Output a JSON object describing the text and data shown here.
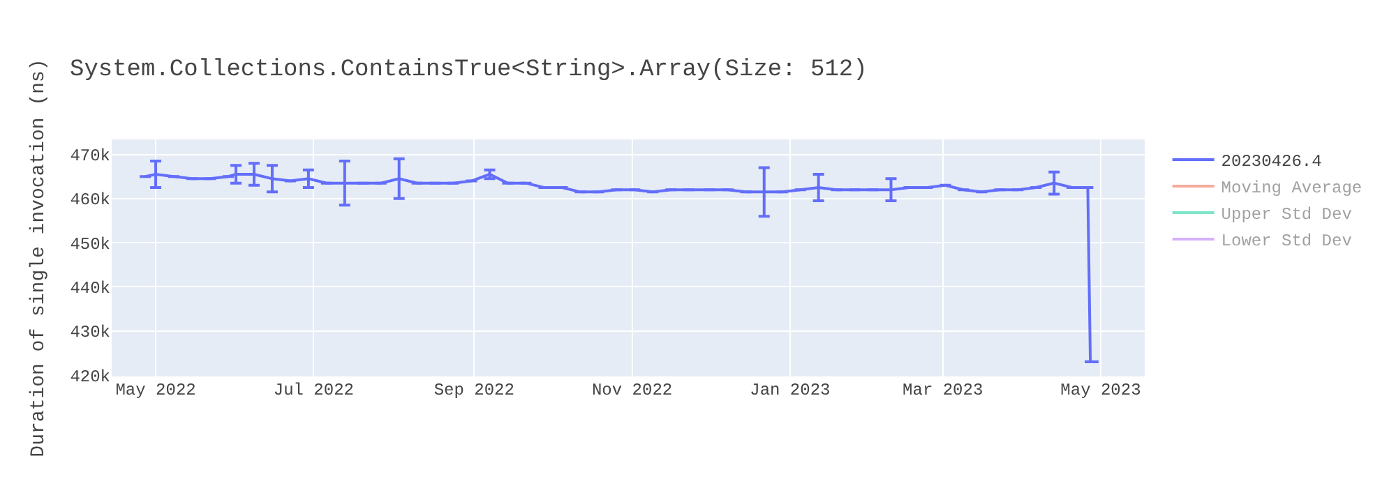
{
  "chart_data": {
    "type": "line",
    "title": "System.Collections.ContainsTrue<String>.Array(Size: 512)",
    "ylabel": "Duration of single invocation (ns)",
    "x": [
      "2022-04-27",
      "2022-05-01",
      "2022-05-08",
      "2022-05-15",
      "2022-05-22",
      "2022-05-29",
      "2022-06-01",
      "2022-06-08",
      "2022-06-15",
      "2022-06-22",
      "2022-06-29",
      "2022-07-06",
      "2022-07-13",
      "2022-07-20",
      "2022-07-27",
      "2022-08-03",
      "2022-08-10",
      "2022-08-17",
      "2022-08-24",
      "2022-08-31",
      "2022-09-07",
      "2022-09-14",
      "2022-09-21",
      "2022-09-28",
      "2022-10-05",
      "2022-10-12",
      "2022-10-19",
      "2022-10-26",
      "2022-11-02",
      "2022-11-09",
      "2022-11-16",
      "2022-11-23",
      "2022-12-01",
      "2022-12-08",
      "2022-12-15",
      "2022-12-22",
      "2022-12-29",
      "2023-01-05",
      "2023-01-12",
      "2023-01-19",
      "2023-01-26",
      "2023-02-02",
      "2023-02-09",
      "2023-02-16",
      "2023-02-23",
      "2023-03-02",
      "2023-03-09",
      "2023-03-16",
      "2023-03-23",
      "2023-03-30",
      "2023-04-06",
      "2023-04-13",
      "2023-04-20",
      "2023-04-26",
      "2023-04-27",
      "2023-04-28"
    ],
    "series": [
      {
        "name": "20230426.4",
        "color": "#636efa",
        "values": [
          465000,
          465500,
          465000,
          464500,
          464500,
          465000,
          465500,
          465500,
          464500,
          464000,
          464500,
          463500,
          463500,
          463500,
          463500,
          464500,
          463500,
          463500,
          463500,
          464000,
          465500,
          463500,
          463500,
          462500,
          462500,
          461500,
          461500,
          462000,
          462000,
          461500,
          462000,
          462000,
          462000,
          462000,
          461500,
          461500,
          461500,
          462000,
          462500,
          462000,
          462000,
          462000,
          462000,
          462500,
          462500,
          463000,
          462000,
          461500,
          462000,
          462000,
          462500,
          463500,
          462500,
          462500,
          423000,
          423000
        ],
        "errors": [
          null,
          3000,
          null,
          null,
          null,
          null,
          2000,
          2500,
          3000,
          null,
          2000,
          null,
          5000,
          null,
          null,
          4500,
          null,
          null,
          null,
          null,
          1000,
          null,
          null,
          null,
          null,
          null,
          null,
          null,
          null,
          null,
          null,
          null,
          null,
          null,
          null,
          5500,
          null,
          null,
          3000,
          null,
          null,
          null,
          2500,
          null,
          null,
          null,
          null,
          null,
          null,
          null,
          null,
          2500,
          null,
          null,
          null,
          null
        ]
      },
      {
        "name": "Moving Average",
        "color": "#ef553b",
        "values": [
          null,
          null,
          null,
          null,
          null,
          null,
          null,
          null,
          null,
          null,
          null,
          null,
          null,
          null,
          null,
          null,
          null,
          null,
          null,
          null,
          null,
          null,
          null,
          null,
          null,
          null,
          null,
          null,
          null,
          null,
          null,
          null,
          null,
          null,
          null,
          null,
          null,
          null,
          null,
          null,
          null,
          null,
          null,
          null,
          null,
          null,
          null,
          null,
          null,
          null,
          null,
          null,
          null,
          null,
          null,
          null
        ]
      },
      {
        "name": "Upper Std Dev",
        "color": "#00cc96",
        "values": [
          null,
          null,
          null,
          null,
          null,
          null,
          null,
          null,
          null,
          null,
          null,
          null,
          null,
          null,
          null,
          null,
          null,
          null,
          null,
          null,
          null,
          null,
          null,
          null,
          null,
          null,
          null,
          null,
          null,
          null,
          null,
          null,
          null,
          null,
          null,
          null,
          null,
          null,
          null,
          null,
          null,
          null,
          null,
          null,
          null,
          null,
          null,
          null,
          null,
          null,
          null,
          null,
          null,
          null,
          null,
          null
        ]
      },
      {
        "name": "Lower Std Dev",
        "color": "#ab63fa",
        "values": [
          null,
          null,
          null,
          null,
          null,
          null,
          null,
          null,
          null,
          null,
          null,
          null,
          null,
          null,
          null,
          null,
          null,
          null,
          null,
          null,
          null,
          null,
          null,
          null,
          null,
          null,
          null,
          null,
          null,
          null,
          null,
          null,
          null,
          null,
          null,
          null,
          null,
          null,
          null,
          null,
          null,
          null,
          null,
          null,
          null,
          null,
          null,
          null,
          null,
          null,
          null,
          null,
          null,
          null,
          null,
          null
        ]
      }
    ],
    "xlim": [
      "2022-04-14",
      "2023-05-18"
    ],
    "xticks": [
      {
        "value": "2022-05-01",
        "label": "May 2022"
      },
      {
        "value": "2022-07-01",
        "label": "Jul 2022"
      },
      {
        "value": "2022-09-01",
        "label": "Sep 2022"
      },
      {
        "value": "2022-11-01",
        "label": "Nov 2022"
      },
      {
        "value": "2023-01-01",
        "label": "Jan 2023"
      },
      {
        "value": "2023-03-01",
        "label": "Mar 2023"
      },
      {
        "value": "2023-05-01",
        "label": "May 2023"
      }
    ],
    "ylim": [
      419700,
      473400
    ],
    "yticks": [
      {
        "value": 420000,
        "label": "420k"
      },
      {
        "value": 430000,
        "label": "430k"
      },
      {
        "value": 440000,
        "label": "440k"
      },
      {
        "value": 450000,
        "label": "450k"
      },
      {
        "value": 460000,
        "label": "460k"
      },
      {
        "value": 470000,
        "label": "470k"
      }
    ],
    "grid": true,
    "legend": "top right",
    "marker": "none",
    "line_style": "solid"
  }
}
